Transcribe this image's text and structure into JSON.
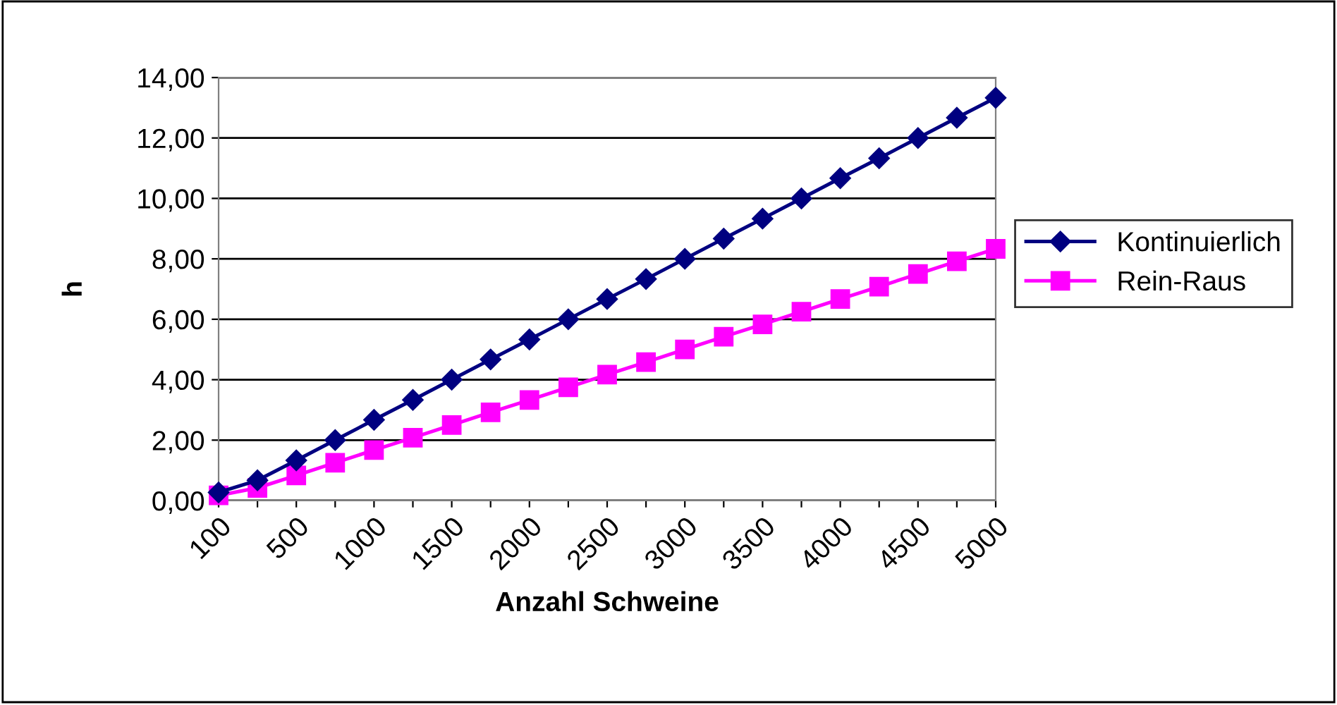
{
  "chart_data": {
    "type": "line",
    "xlabel": "Anzahl Schweine",
    "ylabel": "h",
    "categories": [
      "100",
      null,
      "500",
      null,
      "1000",
      null,
      "1500",
      null,
      "2000",
      null,
      "2500",
      null,
      "3000",
      null,
      "3500",
      null,
      "4000",
      null,
      "4500",
      null,
      "5000"
    ],
    "series": [
      {
        "name": "Kontinuierlich",
        "color": "#000080",
        "marker": "diamond",
        "values": [
          0.27,
          0.67,
          1.33,
          2.0,
          2.67,
          3.33,
          4.0,
          4.67,
          5.33,
          6.0,
          6.67,
          7.33,
          8.0,
          8.67,
          9.33,
          10.0,
          10.67,
          11.33,
          12.0,
          12.67,
          13.33
        ]
      },
      {
        "name": "Rein-Raus",
        "color": "#ff00ff",
        "marker": "square",
        "values": [
          0.17,
          0.42,
          0.83,
          1.25,
          1.67,
          2.08,
          2.5,
          2.92,
          3.33,
          3.75,
          4.17,
          4.58,
          5.0,
          5.42,
          5.83,
          6.25,
          6.67,
          7.08,
          7.5,
          7.92,
          8.33
        ]
      }
    ],
    "ylim": [
      0,
      14
    ],
    "yticks": [
      {
        "value": 0,
        "label": "0,00"
      },
      {
        "value": 2,
        "label": "2,00"
      },
      {
        "value": 4,
        "label": "4,00"
      },
      {
        "value": 6,
        "label": "6,00"
      },
      {
        "value": 8,
        "label": "8,00"
      },
      {
        "value": 10,
        "label": "10,00"
      },
      {
        "value": 12,
        "label": "12,00"
      },
      {
        "value": 14,
        "label": "14,00"
      }
    ],
    "grid": "y",
    "legend": "right",
    "line_style": "solid"
  }
}
